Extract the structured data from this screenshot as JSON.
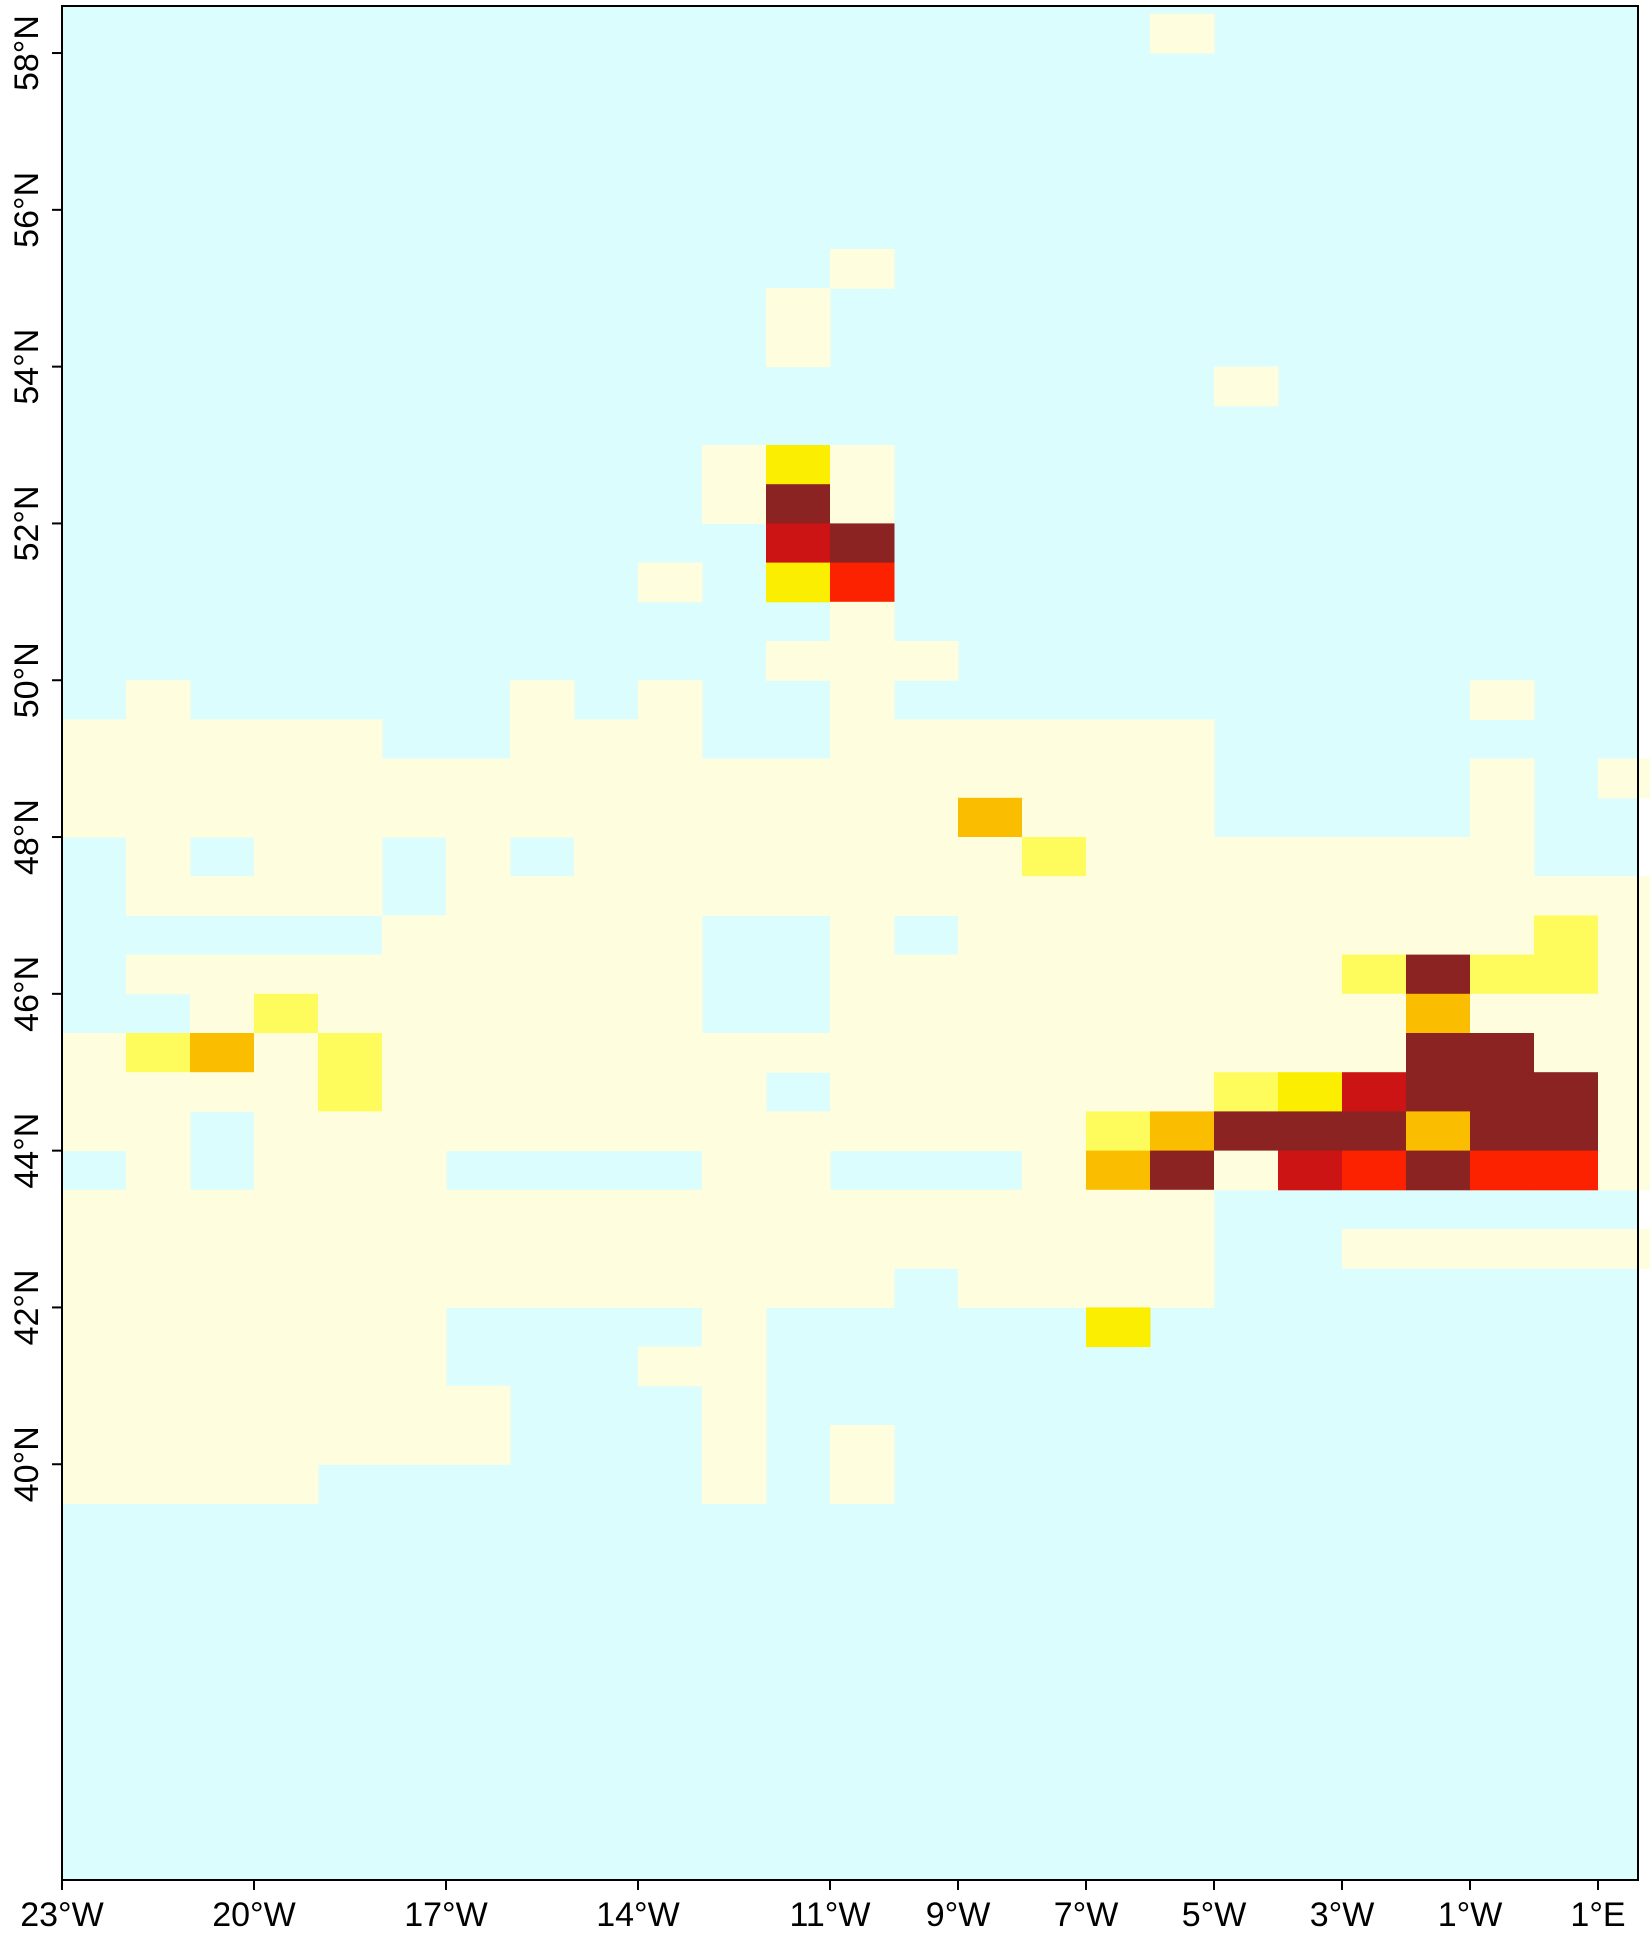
{
  "map": {
    "type": "gridded-heatmap",
    "lon_range": [
      -23,
      1.5
    ],
    "lat_range": [
      39.6,
      58.6
    ],
    "cell_size_deg": 1.0,
    "x_ticks": [
      "23°W",
      "20°W",
      "17°W",
      "14°W",
      "11°W",
      "9°W",
      "7°W",
      "5°W",
      "3°W",
      "1°W",
      "1°E"
    ],
    "y_ticks": [
      "40°N",
      "42°N",
      "44°N",
      "46°N",
      "48°N",
      "50°N",
      "52°N",
      "54°N",
      "56°N",
      "58°N"
    ],
    "colors": {
      "background": "#dcfdfd",
      "level_1": "#fefedf",
      "level_2": "#fdfc5c",
      "level_3": "#fbee00",
      "level_4": "#fbbd00",
      "level_5": "#fc2200",
      "level_6": "#cc1414",
      "level_7": "#8b2323"
    }
  },
  "chart_data": {
    "type": "heatmap",
    "title": "",
    "xlabel": "",
    "ylabel": "",
    "xlim": [
      -23,
      1.5
    ],
    "ylim": [
      39.6,
      58.6
    ],
    "x_unit": "degrees longitude",
    "y_unit": "degrees latitude",
    "grid": false,
    "value_levels": [
      1,
      2,
      3,
      4,
      5,
      6,
      7
    ],
    "rows": [
      {
        "lat": 58.0,
        "lon_start": -23,
        "cells": "0000000000000000010000000000"
      },
      {
        "lat": 55.0,
        "lon_start": -23,
        "cells": "0000000000001000000000000000"
      },
      {
        "lat": 54.5,
        "lon_start": -23,
        "cells": "0000000000010000000000000000"
      },
      {
        "lat": 54.0,
        "lon_start": -23,
        "cells": "0000000000010000000000000000"
      },
      {
        "lat": 53.5,
        "lon_start": -23,
        "cells": "0000000000000000001000000000"
      },
      {
        "lat": 52.5,
        "lon_start": -23,
        "cells": "0000000000131000000000000000"
      },
      {
        "lat": 52.0,
        "lon_start": -23,
        "cells": "0000000000171000000000000000"
      },
      {
        "lat": 51.5,
        "lon_start": -23,
        "cells": "0000000000067000000000000000"
      },
      {
        "lat": 51.0,
        "lon_start": -23,
        "cells": "0000000001035000000000000000"
      },
      {
        "lat": 50.5,
        "lon_start": -23,
        "cells": "0000000000001000000000000100"
      },
      {
        "lat": 50.0,
        "lon_start": -23,
        "cells": "0000000000011100000000000000"
      },
      {
        "lat": 49.5,
        "lon_start": -23,
        "cells": "0100000101001000000000100000"
      },
      {
        "lat": 49.0,
        "lon_start": -23,
        "cells": "1111100111001111110000000000"
      },
      {
        "lat": 48.5,
        "lon_start": -23,
        "cells": "1111111111111111110000101000"
      },
      {
        "lat": 48.0,
        "lon_start": -23,
        "cells": "1111111111111141110000100000"
      },
      {
        "lat": 47.5,
        "lon_start": -23,
        "cells": "0101101011111112111111100000"
      },
      {
        "lat": 47.0,
        "lon_start": -23,
        "cells": "0111101111111111111111111000"
      },
      {
        "lat": 46.5,
        "lon_start": -23,
        "cells": "0000011111001011111111121000"
      },
      {
        "lat": 46.0,
        "lon_start": -23,
        "cells": "0111111111001111111127221000"
      },
      {
        "lat": 45.5,
        "lon_start": -23,
        "cells": "0012111111001111111114111000"
      },
      {
        "lat": 45.0,
        "lon_start": -23,
        "cells": "1241211111111111111117711000"
      },
      {
        "lat": 44.5,
        "lon_start": -23,
        "cells": "1111211111101111112367771000"
      },
      {
        "lat": 44.0,
        "lon_start": -23,
        "cells": "1101111111111111247774771000"
      },
      {
        "lat": 43.5,
        "lon_start": -23,
        "cells": "0101110000110001471657551000"
      },
      {
        "lat": 43.0,
        "lon_start": -23,
        "cells": "1111111111111111110000000000"
      },
      {
        "lat": 42.5,
        "lon_start": -23,
        "cells": "1111111111111111110011111000"
      },
      {
        "lat": 42.0,
        "lon_start": -23,
        "cells": "1111111111111011110000000000"
      },
      {
        "lat": 41.5,
        "lon_start": -23,
        "cells": "1111110000100000300000000000"
      },
      {
        "lat": 41.0,
        "lon_start": -23,
        "cells": "1111110001100000000000000000"
      },
      {
        "lat": 40.5,
        "lon_start": -23,
        "cells": "1111111000100000000000000000"
      },
      {
        "lat": 40.0,
        "lon_start": -23,
        "cells": "1111111000101000000000000000"
      },
      {
        "lat": 39.5,
        "lon_start": -23,
        "cells": "1111000000101000000000000000"
      }
    ]
  }
}
